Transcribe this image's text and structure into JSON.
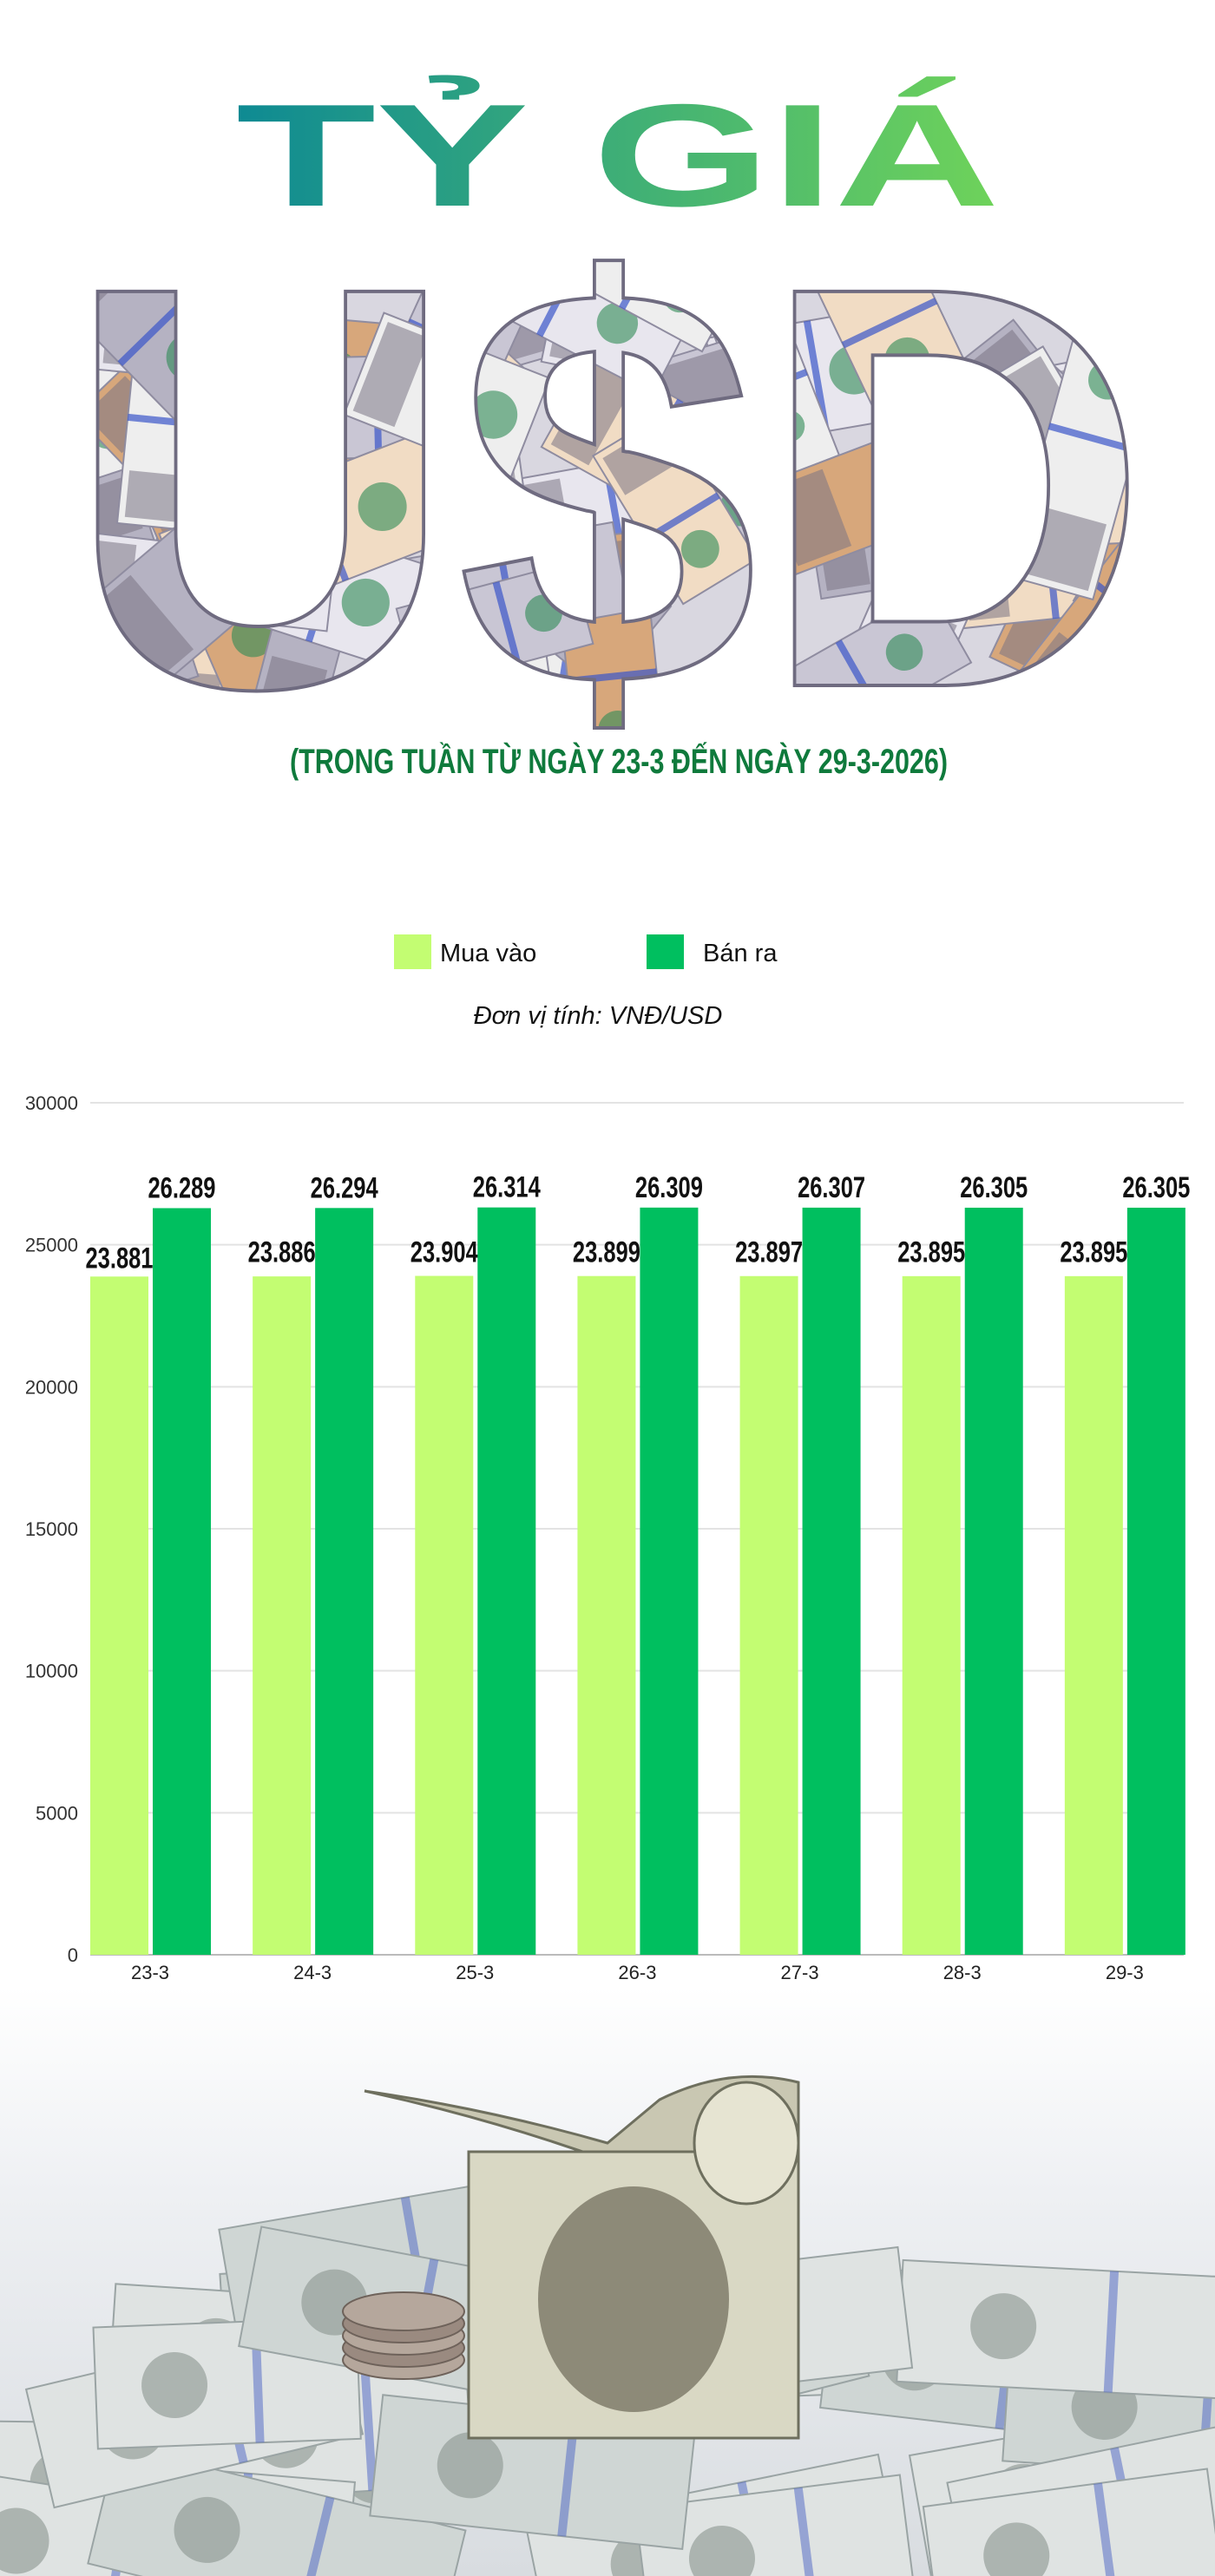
{
  "header": {
    "title": "TỶ GIÁ",
    "currency": "U$D",
    "subtitle": "(TRONG TUẦN TỪ NGÀY 23-3 ĐẾN NGÀY 29-3-2026)"
  },
  "colors": {
    "title_start": "#0e8a93",
    "title_end": "#6fd35a",
    "subtitle": "#0f7a3c",
    "buy": "#c3fd72",
    "sell": "#00bf5f"
  },
  "chart_data": {
    "type": "bar",
    "unit_note": "Đơn vị tính: VNĐ/USD",
    "categories": [
      "23-3",
      "24-3",
      "25-3",
      "26-3",
      "27-3",
      "28-3",
      "29-3"
    ],
    "series": [
      {
        "name": "Mua vào",
        "color": "#c3fd72",
        "values": [
          23881,
          23886,
          23904,
          23899,
          23897,
          23895,
          23895
        ],
        "labels": [
          "23.881",
          "23.886",
          "23.904",
          "23.899",
          "23.897",
          "23.895",
          "23.895"
        ]
      },
      {
        "name": "Bán ra",
        "color": "#00bf5f",
        "values": [
          26289,
          26294,
          26314,
          26309,
          26307,
          26305,
          26305
        ],
        "labels": [
          "26.289",
          "26.294",
          "26.314",
          "26.309",
          "26.307",
          "26.305",
          "26.305"
        ]
      }
    ],
    "ylim": [
      0,
      30000
    ],
    "yticks": [
      "0",
      "5000",
      "10000",
      "15000",
      "20000",
      "25000",
      "30000"
    ],
    "grid": true,
    "legend": "top-center",
    "xlabel": "",
    "ylabel": ""
  }
}
